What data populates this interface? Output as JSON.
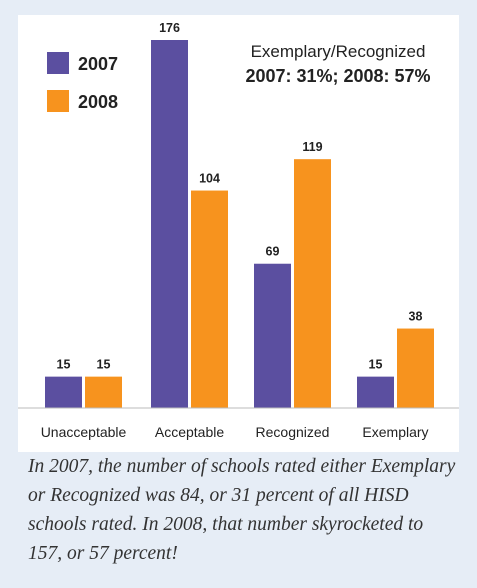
{
  "chart_data": {
    "type": "bar",
    "categories": [
      "Unacceptable",
      "Acceptable",
      "Recognized",
      "Exemplary"
    ],
    "series": [
      {
        "name": "2007",
        "color": "#5b4fa0",
        "values": [
          15,
          176,
          69,
          15
        ]
      },
      {
        "name": "2008",
        "color": "#f7931e",
        "values": [
          15,
          104,
          119,
          38
        ]
      }
    ],
    "ylim": [
      0,
      176
    ],
    "grid": false,
    "legend": "top-left",
    "annotation": {
      "line1": "Exemplary/Recognized",
      "line2": "2007: 31%; 2008: 57%"
    }
  },
  "caption": "In 2007, the number of schools rated either Exemplary or Recognized was 84, or 31 percent of all HISD schools rated. In 2008, that number skyrocketed to 157, or 57 percent!"
}
